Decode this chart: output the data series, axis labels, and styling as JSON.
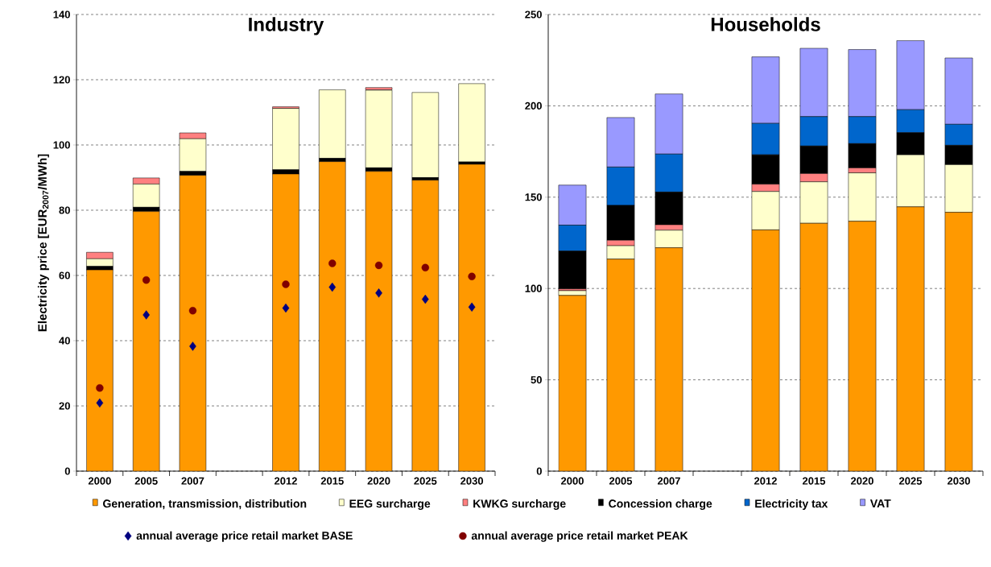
{
  "chart_data": [
    {
      "type": "bar",
      "title": "Industry",
      "ylabel": "Electricity price  [EUR$_{2007}$/MWh]",
      "stacked": true,
      "grid": "y",
      "legend": "bottom",
      "categories": [
        "2000",
        "2005",
        "2007",
        null,
        "2012",
        "2015",
        "2020",
        "2025",
        "2030"
      ],
      "ylim": [
        0,
        140
      ],
      "yticks": [
        0,
        20,
        40,
        60,
        80,
        100,
        120,
        140
      ],
      "series": [
        {
          "color": "#ff9900",
          "values": [
            61.7,
            79.6,
            90.7,
            null,
            91.1,
            94.9,
            91.9,
            89.2,
            94.1
          ]
        },
        {
          "color": "#000000",
          "values": [
            1.1,
            1.3,
            1.2,
            null,
            1.3,
            1.0,
            1.1,
            0.8,
            0.7
          ]
        },
        {
          "color": "#ffffcc",
          "values": [
            2.3,
            7.1,
            10.0,
            null,
            18.8,
            21.0,
            23.8,
            26.1,
            24.0
          ]
        },
        {
          "color": "#ff8080",
          "values": [
            2.0,
            1.9,
            1.8,
            null,
            0.5,
            null,
            0.7,
            0,
            0
          ]
        },
        {
          "type": "scatter",
          "name": "annual average price retail market BASE",
          "color": "#000080",
          "marker": "diamond",
          "values": [
            20.9,
            47.9,
            38.3,
            null,
            50.0,
            56.4,
            54.6,
            52.7,
            50.3
          ]
        },
        {
          "type": "scatter",
          "name": "annual average price retail market PEAK",
          "color": "#800000",
          "marker": "circle",
          "values": [
            25.5,
            58.6,
            49.2,
            null,
            57.3,
            63.7,
            63.1,
            62.4,
            59.7
          ]
        }
      ]
    },
    {
      "type": "bar",
      "title": "Households",
      "stacked": true,
      "grid": "y",
      "legend": "bottom",
      "categories": [
        "2000",
        "2005",
        "2007",
        null,
        "2012",
        "2015",
        "2020",
        "2025",
        "2030"
      ],
      "ylim": [
        0,
        250
      ],
      "yticks": [
        0,
        50,
        100,
        150,
        200,
        250
      ],
      "series": [
        {
          "name": "Generation, transmission, distribution",
          "color": "#ff9900",
          "values": [
            96.2,
            116.1,
            122.3,
            null,
            132.1,
            135.7,
            136.8,
            144.7,
            141.7
          ]
        },
        {
          "name": "EEG surcharge",
          "color": "#ffffcc",
          "values": [
            2.6,
            7.3,
            9.6,
            null,
            21.0,
            22.7,
            26.5,
            28.5,
            26.1
          ]
        },
        {
          "name": "KWKG surcharge",
          "color": "#ff8080",
          "values": [
            1.0,
            3.0,
            3.0,
            null,
            4.0,
            4.5,
            2.7,
            0,
            0
          ]
        },
        {
          "name": "Concession charge",
          "color": "#000000",
          "values": [
            20.7,
            19.1,
            17.9,
            null,
            16.1,
            15.1,
            13.3,
            12.1,
            10.6
          ]
        },
        {
          "name": "Electricity tax",
          "color": "#0066cc",
          "values": [
            14.2,
            21.0,
            20.8,
            null,
            17.2,
            16.1,
            14.8,
            12.6,
            11.5
          ]
        },
        {
          "name": "VAT",
          "color": "#9999ff",
          "values": [
            21.9,
            27.1,
            32.9,
            null,
            36.4,
            37.4,
            36.7,
            37.8,
            36.3
          ]
        }
      ]
    }
  ]
}
